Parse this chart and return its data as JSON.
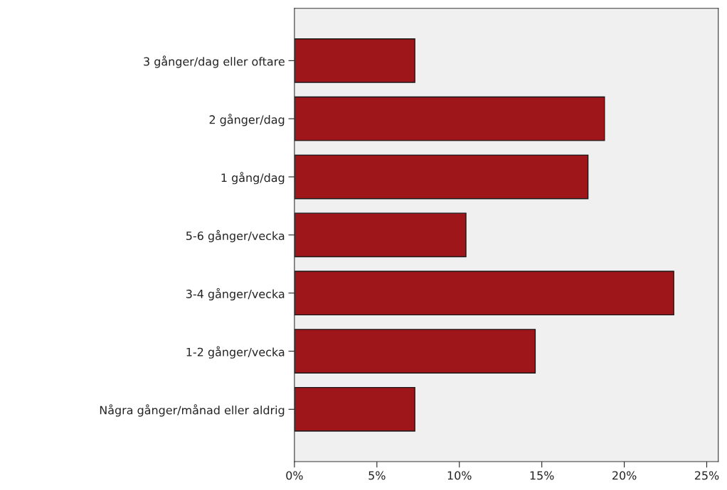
{
  "chart_data": {
    "type": "bar",
    "orientation": "horizontal",
    "categories": [
      "3 gånger/dag eller oftare",
      "2 gånger/dag",
      "1 gång/dag",
      "5-6 gånger/vecka",
      "3-4 gånger/vecka",
      "1-2 gånger/vecka",
      "Några gånger/månad eller aldrig"
    ],
    "values": [
      7.3,
      18.8,
      17.8,
      10.4,
      23.0,
      14.6,
      7.3
    ],
    "color": "#9e1619",
    "xlim": [
      0,
      25.7
    ],
    "xticks": [
      {
        "value": 0,
        "label": "0%"
      },
      {
        "value": 5,
        "label": "5%"
      },
      {
        "value": 10,
        "label": "10%"
      },
      {
        "value": 15,
        "label": "15%"
      },
      {
        "value": 20,
        "label": "20%"
      },
      {
        "value": 25,
        "label": "25%"
      }
    ],
    "grid": false
  }
}
